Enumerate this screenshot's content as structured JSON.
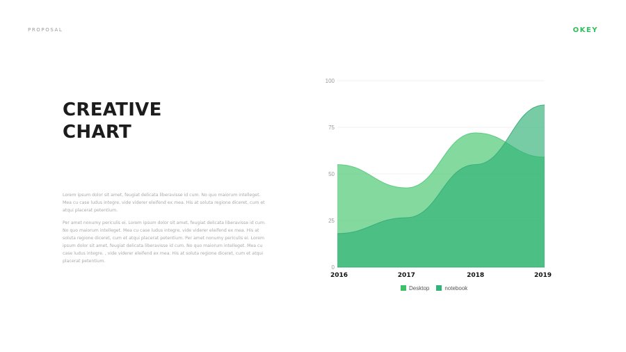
{
  "header": {
    "left": "PROPOSAL",
    "brand": "OKEY"
  },
  "title": [
    "CREATIVE",
    "CHART"
  ],
  "paragraphs": [
    "Lorem ipsum dolor sit amet, feugiat delicata liberavisse id cum. No quo maiorum intelleget. Mea cu case ludus integre, vide viderer eleifend ex mea. His at soluta regione diceret, cum et atqui placerat petentium.",
    "Per amet nonumy periculis ei. Lorem ipsum dolor sit amet, feugiat delicata liberavisse id cum. No quo maiorum intelleget. Mea cu case ludus integre, vide viderer eleifend ex mea. His at soluta regione diceret, cum et atqui placerat petentium. Per amet nonumy periculis ei. Lorem ipsum dolor sit amet, feugiat delicata liberavisse id cum. No quo maiorum intelleget. Mea cu case ludus integre. , vide viderer eleifend ex mea. His at soluta regione diceret, cum et atqui placerat petentium."
  ],
  "chart_data": {
    "type": "area",
    "categories": [
      "2016",
      "2017",
      "2018",
      "2019"
    ],
    "series": [
      {
        "name": "Desktop",
        "values": [
          55,
          42.5,
          72,
          59
        ],
        "color": "#3cc06a"
      },
      {
        "name": "notebook",
        "values": [
          18,
          26.5,
          55,
          87
        ],
        "color": "#2fb47a"
      }
    ],
    "ylim": [
      0,
      100
    ],
    "yticks": [
      0,
      25,
      50,
      75,
      100
    ],
    "grid": true,
    "legend": "bottom",
    "smooth": true
  }
}
